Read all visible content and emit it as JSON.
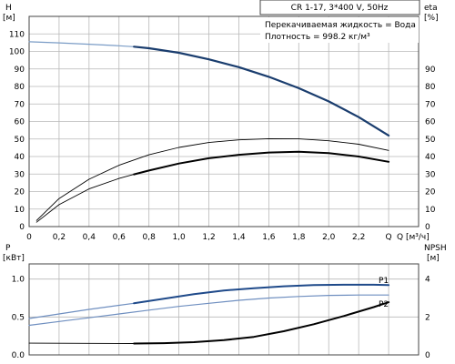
{
  "header": {
    "model": "CR 1-17, 3*400 V, 50Hz",
    "liquid": "Перекачиваемая жидкость = Вода",
    "density": "Плотность = 998.2 кг/м³"
  },
  "chart_data": [
    {
      "type": "line",
      "name": "performance",
      "x_axis": {
        "label": "Q [м³/ч]",
        "range": [
          0,
          2.6
        ],
        "ticks": [
          "0",
          "0,2",
          "0,4",
          "0,6",
          "0,8",
          "1,0",
          "1,2",
          "1,4",
          "1,6",
          "1,8",
          "2,0",
          "2,2",
          "Q"
        ]
      },
      "y_left": {
        "label_line1": "H",
        "label_line2": "[м]",
        "range": [
          0,
          120
        ],
        "ticks": [
          "0",
          "10",
          "20",
          "30",
          "40",
          "50",
          "60",
          "70",
          "80",
          "90",
          "100",
          "110"
        ]
      },
      "y_right": {
        "label_line1": "eta",
        "label_line2": "[%]",
        "range": [
          0,
          120
        ],
        "ticks": [
          "0",
          "10",
          "20",
          "30",
          "40",
          "50",
          "60",
          "70",
          "80",
          "90"
        ]
      },
      "grid": true,
      "series": [
        {
          "key": "H_thin",
          "color": "#7a9cc6",
          "width": 1.2,
          "x": [
            0,
            0.2,
            0.4,
            0.6,
            0.7
          ],
          "y": [
            105.5,
            104.9,
            104.1,
            103.2,
            102.7
          ]
        },
        {
          "key": "H",
          "color": "#1a3d6e",
          "width": 2.2,
          "x": [
            0.7,
            0.8,
            1.0,
            1.2,
            1.4,
            1.6,
            1.8,
            2.0,
            2.2,
            2.4
          ],
          "y": [
            102.7,
            101.8,
            99.2,
            95.5,
            91,
            85.5,
            79,
            71.5,
            62.5,
            52
          ]
        },
        {
          "key": "eta_upper",
          "color": "#000000",
          "width": 0.9,
          "x": [
            0.05,
            0.2,
            0.4,
            0.6,
            0.8,
            1.0,
            1.2,
            1.4,
            1.6,
            1.8,
            2.0,
            2.2,
            2.4
          ],
          "y": [
            3.5,
            16,
            27,
            35,
            41,
            45.2,
            48,
            49.5,
            50.2,
            50.1,
            49,
            47,
            43.5
          ]
        },
        {
          "key": "eta_thin",
          "color": "#000000",
          "width": 0.9,
          "x": [
            0.05,
            0.2,
            0.4,
            0.6,
            0.7
          ],
          "y": [
            2.5,
            12.5,
            21.5,
            27.5,
            29.8
          ]
        },
        {
          "key": "eta",
          "color": "#000000",
          "width": 2.0,
          "x": [
            0.7,
            0.8,
            1.0,
            1.2,
            1.4,
            1.6,
            1.8,
            2.0,
            2.2,
            2.4
          ],
          "y": [
            29.8,
            32,
            36,
            39,
            41,
            42.3,
            42.7,
            42,
            40,
            37
          ]
        }
      ]
    },
    {
      "type": "line",
      "name": "power_npsh",
      "x_axis": {
        "range": [
          0,
          2.6
        ]
      },
      "y_left": {
        "label_line1": "P",
        "label_line2": "[кВт]",
        "range": [
          0,
          1.2
        ],
        "ticks": [
          "0.0",
          "0.5",
          "1.0"
        ]
      },
      "y_right": {
        "label_line1": "NPSH",
        "label_line2": "[м]",
        "range": [
          0,
          4.8
        ],
        "ticks": [
          "0",
          "2",
          "4"
        ]
      },
      "grid": true,
      "series": [
        {
          "key": "P1_thin",
          "color": "#6f8fc0",
          "width": 1.2,
          "x": [
            0,
            0.2,
            0.4,
            0.7
          ],
          "y": [
            0.48,
            0.54,
            0.6,
            0.68
          ]
        },
        {
          "key": "P1",
          "color": "#1f4a8a",
          "width": 2.0,
          "x": [
            0.7,
            0.9,
            1.1,
            1.3,
            1.5,
            1.7,
            1.9,
            2.1,
            2.3,
            2.4
          ],
          "y": [
            0.68,
            0.74,
            0.8,
            0.85,
            0.88,
            0.905,
            0.92,
            0.925,
            0.925,
            0.92
          ]
        },
        {
          "key": "P2_thin",
          "color": "#6f8fc0",
          "width": 1.2,
          "x": [
            0,
            0.2,
            0.4,
            0.6,
            0.8,
            1.0,
            1.2,
            1.4,
            1.6,
            1.8,
            2.0,
            2.2,
            2.4
          ],
          "y": [
            0.39,
            0.44,
            0.49,
            0.54,
            0.59,
            0.64,
            0.68,
            0.72,
            0.75,
            0.77,
            0.785,
            0.79,
            0.79
          ]
        },
        {
          "key": "NPSH_thin",
          "color": "#000000",
          "width": 0.9,
          "x": [
            0,
            0.7
          ],
          "y": [
            0.62,
            0.6
          ]
        },
        {
          "key": "NPSH",
          "color": "#000000",
          "width": 2.0,
          "x": [
            0.7,
            0.9,
            1.1,
            1.3,
            1.5,
            1.7,
            1.9,
            2.1,
            2.3,
            2.4
          ],
          "y": [
            0.6,
            0.62,
            0.67,
            0.78,
            0.95,
            1.25,
            1.62,
            2.05,
            2.52,
            2.78
          ]
        }
      ],
      "labels": [
        {
          "text": "P1",
          "x": 2.4,
          "y": 0.95,
          "axis": "left"
        },
        {
          "text": "P2",
          "x": 2.4,
          "y": 0.8,
          "axis": "left"
        }
      ]
    }
  ]
}
